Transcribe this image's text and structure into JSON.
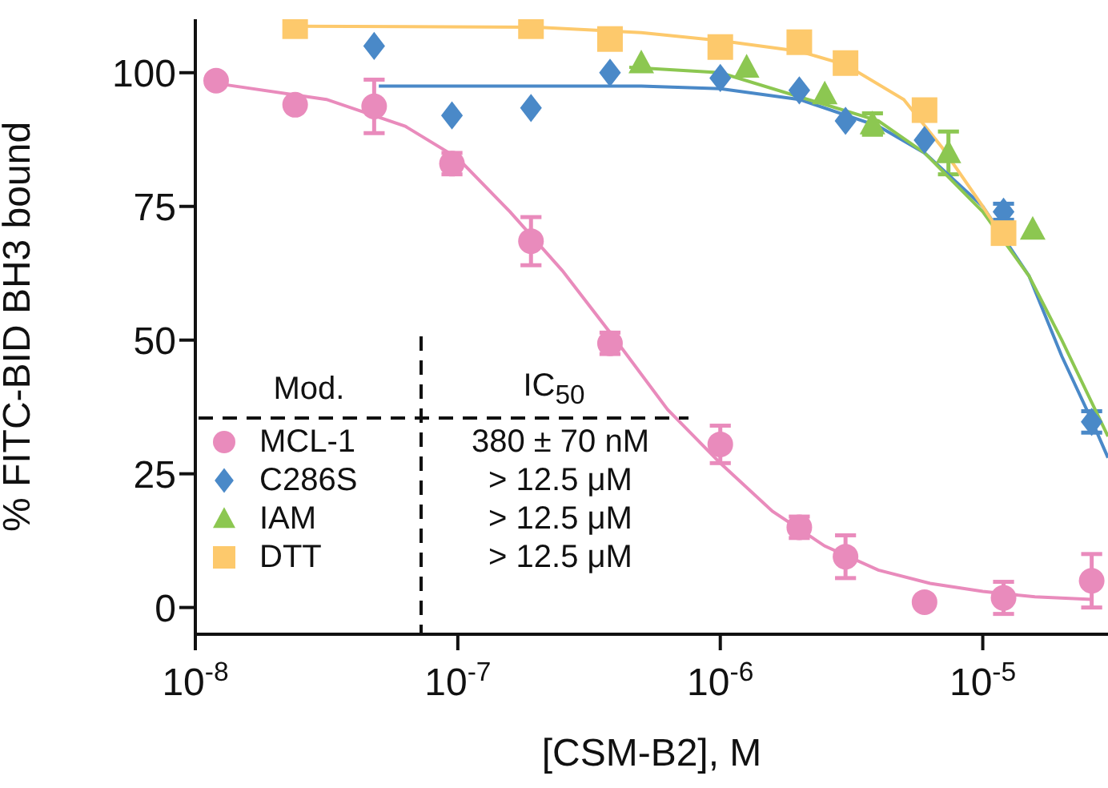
{
  "chart_data": {
    "type": "scatter",
    "xlabel": "[CSM-B2], M",
    "ylabel": "% FITC-BID BH3 bound",
    "legend_title": "Mod.",
    "legend": "bottom left",
    "log": "x",
    "grid": false,
    "xlim": [
      1e-08,
      3e-05
    ],
    "xticks": [
      {
        "value": 1e-08,
        "label": "10$^{-8}$"
      },
      {
        "value": 1e-07,
        "label": "10$^{-7}$"
      },
      {
        "value": 1e-06,
        "label": "10$^{-6}$"
      },
      {
        "value": 1e-05,
        "label": "10$^{-5}$"
      }
    ],
    "ylim": [
      -5,
      110
    ],
    "yticks": [
      0,
      25,
      50,
      75,
      100
    ],
    "annotations": [
      "IC$_{50}$",
      "380 ± 70 nM",
      "> 12.5 μM",
      "> 12.5 μM",
      "> 12.5 μM"
    ],
    "series": [
      {
        "type": "line",
        "color": "#e98bbc",
        "marker": "none",
        "x": [
          1.2e-08,
          3.16e-08,
          6.3e-08,
          1e-07,
          1.58e-07,
          2.5e-07,
          4e-07,
          6.3e-07,
          1e-06,
          1.58e-06,
          2.5e-06,
          4e-06,
          6.3e-06,
          1e-05,
          1.58e-05,
          2.6e-05
        ],
        "values": [
          98,
          95,
          90,
          84,
          74,
          63,
          50,
          37,
          27,
          18,
          11.5,
          7,
          4.5,
          3,
          2,
          1.5
        ]
      },
      {
        "type": "line",
        "color": "#4a89c8",
        "marker": "none",
        "x": [
          5e-08,
          1e-07,
          5e-07,
          1e-06,
          2e-06,
          4e-06,
          6e-06,
          1e-05,
          1.5e-05,
          2e-05,
          2.6e-05,
          3e-05
        ],
        "values": [
          97.5,
          97.5,
          97.5,
          97,
          95,
          90,
          85,
          75,
          62,
          47,
          35,
          28
        ]
      },
      {
        "type": "line",
        "color": "#8cc751",
        "marker": "none",
        "x": [
          4.5e-07,
          1e-06,
          4e-06,
          6e-06,
          1e-05,
          1.5e-05,
          2e-05,
          3e-05
        ],
        "values": [
          101,
          100,
          91,
          85,
          74,
          62,
          50,
          32
        ]
      },
      {
        "type": "line",
        "color": "#fdc96c",
        "marker": "none",
        "x": [
          2.4e-08,
          2e-07,
          5e-07,
          1e-06,
          2e-06,
          3e-06,
          5e-06,
          7e-06,
          1e-05,
          1.2e-05
        ],
        "values": [
          108.7,
          108.5,
          107.5,
          106,
          104,
          101.5,
          95,
          86,
          75,
          69
        ]
      },
      {
        "name": "MCL-1",
        "type": "scatter",
        "color": "#e98bbc",
        "marker": "circle",
        "x": [
          1.2e-08,
          2.4e-08,
          4.8e-08,
          9.5e-08,
          1.9e-07,
          3.8e-07,
          1e-06,
          2e-06,
          3e-06,
          6e-06,
          1.2e-05,
          2.6e-05
        ],
        "values": [
          98.5,
          94,
          93.7,
          83,
          68.5,
          49.4,
          30.5,
          15,
          9.5,
          1,
          1.8,
          5
        ],
        "errors": [
          null,
          null,
          5,
          2,
          4.5,
          2,
          3.5,
          2,
          4,
          null,
          3,
          5
        ]
      },
      {
        "name": "C286S",
        "type": "scatter",
        "color": "#4a89c8",
        "marker": "diamond",
        "x": [
          4.8e-08,
          9.5e-08,
          1.9e-07,
          3.8e-07,
          1e-06,
          2e-06,
          3e-06,
          6e-06,
          1.2e-05,
          2.6e-05
        ],
        "values": [
          105,
          92,
          93.4,
          100,
          99,
          96.7,
          91,
          87.4,
          74,
          34.7
        ],
        "errors": [
          null,
          null,
          null,
          null,
          null,
          null,
          null,
          null,
          1.5,
          2
        ]
      },
      {
        "name": "IAM",
        "type": "scatter",
        "color": "#8cc751",
        "marker": "triangle",
        "x": [
          5e-07,
          1.26e-06,
          2.5e-06,
          3.8e-06,
          7.4e-06,
          1.55e-05
        ],
        "values": [
          101.8,
          101,
          96,
          90.4,
          85,
          70.7
        ],
        "errors": [
          null,
          null,
          null,
          2,
          4,
          null
        ]
      },
      {
        "name": "DTT",
        "type": "scatter",
        "color": "#fdc96c",
        "marker": "square",
        "x": [
          2.4e-08,
          1.9e-07,
          3.8e-07,
          1e-06,
          2e-06,
          3e-06,
          6e-06,
          1.2e-05
        ],
        "values": [
          108.7,
          108.7,
          106.3,
          104.8,
          105.7,
          101.8,
          93,
          70
        ]
      }
    ]
  }
}
